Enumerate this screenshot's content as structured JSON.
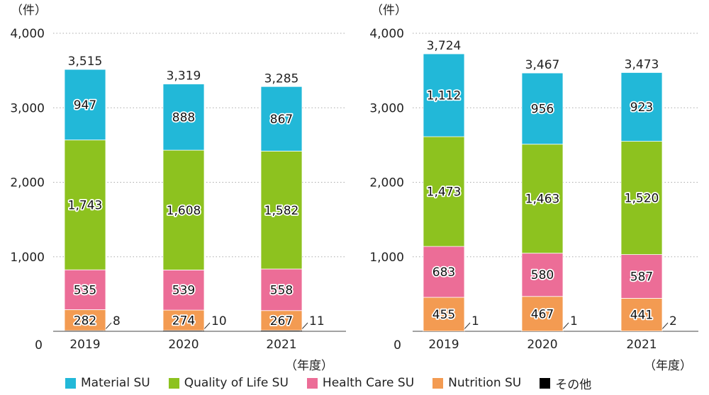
{
  "unit_label": "（件）",
  "x_unit_label": "（年度）",
  "colors": {
    "material": "#22b8d8",
    "qol": "#8dc21f",
    "health": "#ec6d97",
    "nutrition": "#f39b52",
    "other": "#000000",
    "grid": "#aaaaaa"
  },
  "legend": [
    {
      "key": "material",
      "label": "Material SU"
    },
    {
      "key": "qol",
      "label": "Quality of Life SU"
    },
    {
      "key": "health",
      "label": "Health Care SU"
    },
    {
      "key": "nutrition",
      "label": "Nutrition SU"
    },
    {
      "key": "other",
      "label": "その他"
    }
  ],
  "chart_data": [
    {
      "type": "bar",
      "stacked": true,
      "categories": [
        "2019",
        "2020",
        "2021"
      ],
      "ylim": [
        0,
        4000
      ],
      "yticks": [
        "0",
        "1,000",
        "2,000",
        "3,000",
        "4,000"
      ],
      "grid": true,
      "series": [
        {
          "key": "other",
          "name": "その他",
          "values": [
            8,
            10,
            11
          ],
          "labels": [
            "8",
            "10",
            "11"
          ]
        },
        {
          "key": "nutrition",
          "name": "Nutrition SU",
          "values": [
            282,
            274,
            267
          ],
          "labels": [
            "282",
            "274",
            "267"
          ]
        },
        {
          "key": "health",
          "name": "Health Care SU",
          "values": [
            535,
            539,
            558
          ],
          "labels": [
            "535",
            "539",
            "558"
          ]
        },
        {
          "key": "qol",
          "name": "Quality of Life SU",
          "values": [
            1743,
            1608,
            1582
          ],
          "labels": [
            "1,743",
            "1,608",
            "1,582"
          ]
        },
        {
          "key": "material",
          "name": "Material SU",
          "values": [
            947,
            888,
            867
          ],
          "labels": [
            "947",
            "888",
            "867"
          ]
        }
      ],
      "totals": [
        3515,
        3319,
        3285
      ],
      "total_labels": [
        "3,515",
        "3,319",
        "3,285"
      ]
    },
    {
      "type": "bar",
      "stacked": true,
      "categories": [
        "2019",
        "2020",
        "2021"
      ],
      "ylim": [
        0,
        4000
      ],
      "yticks": [
        "0",
        "1,000",
        "2,000",
        "3,000",
        "4,000"
      ],
      "grid": true,
      "series": [
        {
          "key": "other",
          "name": "その他",
          "values": [
            1,
            1,
            2
          ],
          "labels": [
            "1",
            "1",
            "2"
          ]
        },
        {
          "key": "nutrition",
          "name": "Nutrition SU",
          "values": [
            455,
            467,
            441
          ],
          "labels": [
            "455",
            "467",
            "441"
          ]
        },
        {
          "key": "health",
          "name": "Health Care SU",
          "values": [
            683,
            580,
            587
          ],
          "labels": [
            "683",
            "580",
            "587"
          ]
        },
        {
          "key": "qol",
          "name": "Quality of Life SU",
          "values": [
            1473,
            1463,
            1520
          ],
          "labels": [
            "1,473",
            "1,463",
            "1,520"
          ]
        },
        {
          "key": "material",
          "name": "Material SU",
          "values": [
            1112,
            956,
            923
          ],
          "labels": [
            "1,112",
            "956",
            "923"
          ]
        }
      ],
      "totals": [
        3724,
        3467,
        3473
      ],
      "total_labels": [
        "3,724",
        "3,467",
        "3,473"
      ]
    }
  ]
}
